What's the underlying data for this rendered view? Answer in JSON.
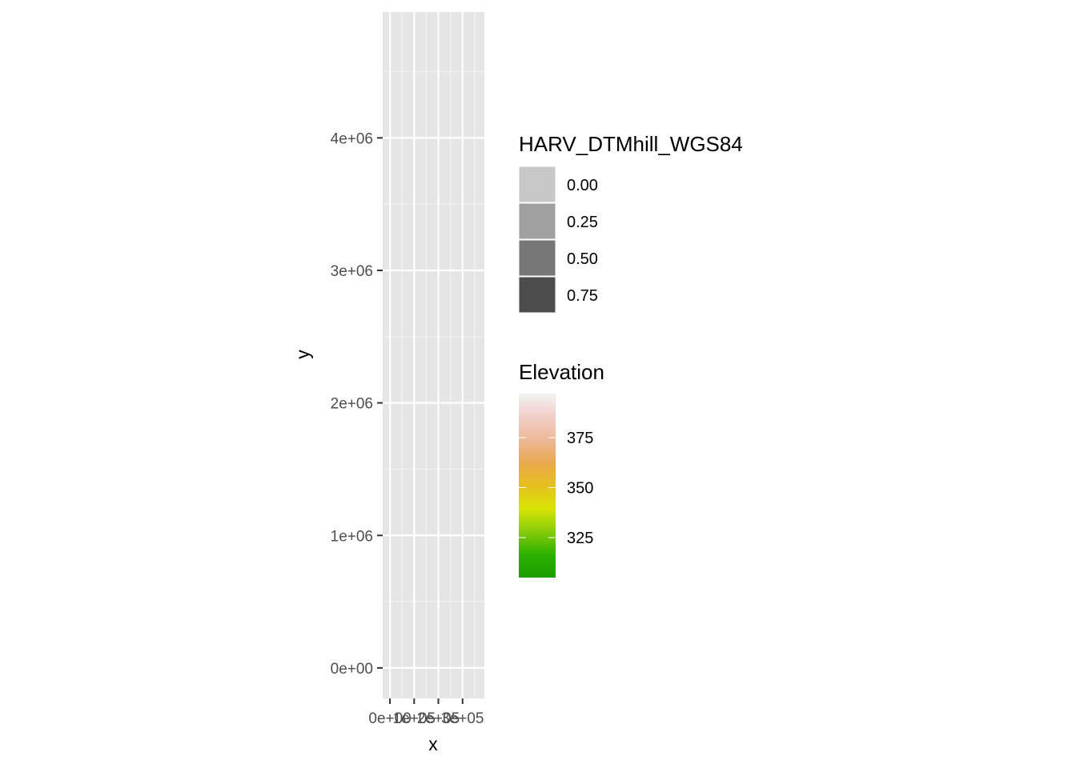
{
  "chart_data": {
    "type": "heatmap",
    "title": "",
    "xlabel": "x",
    "ylabel": "y",
    "xlim": [
      -30000,
      390000
    ],
    "ylim": [
      -230000,
      4950000
    ],
    "x_ticks": [
      {
        "value": 0,
        "label": "0e+00"
      },
      {
        "value": 100000,
        "label": "1e+05"
      },
      {
        "value": 200000,
        "label": "2e+05"
      },
      {
        "value": 300000,
        "label": "3e+05"
      }
    ],
    "y_ticks": [
      {
        "value": 0,
        "label": "0e+00"
      },
      {
        "value": 1000000,
        "label": "1e+06"
      },
      {
        "value": 2000000,
        "label": "2e+06"
      },
      {
        "value": 3000000,
        "label": "3e+06"
      },
      {
        "value": 4000000,
        "label": "4e+06"
      }
    ],
    "grid": true,
    "panel_color": "#e5e5e5",
    "legend_placement": "right",
    "legends": [
      {
        "title": "HARV_DTMhill_WGS84",
        "kind": "alpha",
        "keys": [
          {
            "label": "0.00",
            "color": "#c8c8c8"
          },
          {
            "label": "0.25",
            "color": "#a0a0a0"
          },
          {
            "label": "0.50",
            "color": "#777777"
          },
          {
            "label": "0.75",
            "color": "#4d4d4d"
          }
        ]
      },
      {
        "title": "Elevation",
        "kind": "colorbar",
        "range": [
          305,
          397
        ],
        "breaks": [
          {
            "value": 375,
            "label": "375"
          },
          {
            "value": 350,
            "label": "350"
          },
          {
            "value": 325,
            "label": "325"
          }
        ],
        "colors": [
          "#1a9e00",
          "#2cb000",
          "#86cc0a",
          "#d8e304",
          "#e5c020",
          "#e9a84e",
          "#edb99b",
          "#f1cfc8",
          "#f2f2f2"
        ]
      }
    ]
  }
}
